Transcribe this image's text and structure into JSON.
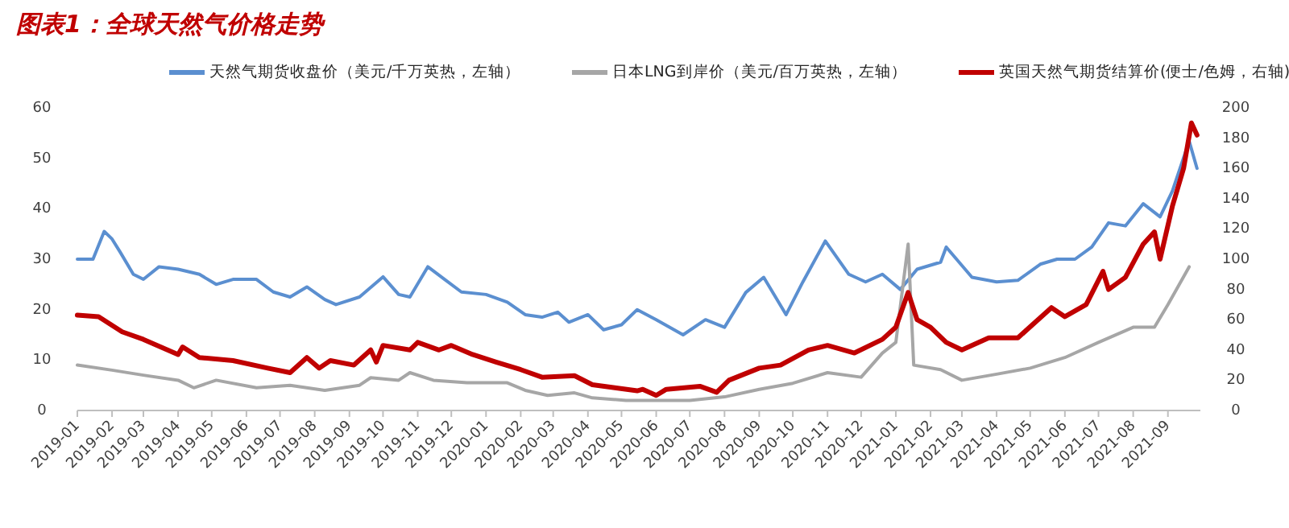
{
  "chart_data": {
    "type": "line",
    "title": "图表1：全球天然气价格走势",
    "legend": "top",
    "grid": false,
    "line_style": "solid",
    "marker": "none",
    "xlim": [
      "2019-01-01",
      "2021-09-30"
    ],
    "xticks": [
      "2019-01",
      "2019-02",
      "2019-03",
      "2019-04",
      "2019-05",
      "2019-06",
      "2019-07",
      "2019-08",
      "2019-09",
      "2019-10",
      "2019-11",
      "2019-12",
      "2020-01",
      "2020-02",
      "2020-03",
      "2020-04",
      "2020-05",
      "2020-06",
      "2020-07",
      "2020-08",
      "2020-09",
      "2020-10",
      "2020-11",
      "2020-12",
      "2021-01",
      "2021-02",
      "2021-03",
      "2021-04",
      "2021-05",
      "2021-06",
      "2021-07",
      "2021-08",
      "2021-09"
    ],
    "ylim": [
      0,
      60
    ],
    "yticks": [
      0,
      10,
      20,
      30,
      40,
      50,
      60
    ],
    "y2lim": [
      0,
      200
    ],
    "y2ticks": [
      0,
      20,
      40,
      60,
      80,
      100,
      120,
      140,
      160,
      180,
      200
    ],
    "series": [
      {
        "name": "天然气期货收盘价（美元/千万英热，左轴）",
        "color": "#5b8fd0",
        "axis": "y",
        "x": [
          "2019-01-01",
          "2019-01-15",
          "2019-01-25",
          "2019-02-01",
          "2019-02-08",
          "2019-02-20",
          "2019-03-01",
          "2019-03-15",
          "2019-04-01",
          "2019-04-20",
          "2019-05-05",
          "2019-05-20",
          "2019-06-10",
          "2019-06-25",
          "2019-07-10",
          "2019-07-25",
          "2019-08-10",
          "2019-08-20",
          "2019-09-10",
          "2019-10-01",
          "2019-10-15",
          "2019-10-25",
          "2019-11-10",
          "2019-11-25",
          "2019-12-10",
          "2020-01-01",
          "2020-01-20",
          "2020-02-05",
          "2020-02-20",
          "2020-03-05",
          "2020-03-15",
          "2020-04-01",
          "2020-04-15",
          "2020-05-01",
          "2020-05-15",
          "2020-06-01",
          "2020-06-25",
          "2020-07-15",
          "2020-08-01",
          "2020-08-20",
          "2020-09-05",
          "2020-09-25",
          "2020-10-10",
          "2020-10-30",
          "2020-11-20",
          "2020-12-05",
          "2020-12-20",
          "2021-01-05",
          "2021-01-20",
          "2021-02-10",
          "2021-02-15",
          "2021-03-10",
          "2021-04-01",
          "2021-04-20",
          "2021-05-10",
          "2021-05-25",
          "2021-06-10",
          "2021-06-25",
          "2021-07-10",
          "2021-07-25",
          "2021-08-10",
          "2021-08-25",
          "2021-09-05",
          "2021-09-20",
          "2021-09-27"
        ],
        "values": [
          30,
          30,
          35.5,
          34,
          31.5,
          27,
          26,
          28.5,
          28,
          27,
          25,
          26,
          26,
          23.5,
          22.5,
          24.5,
          22,
          21,
          22.5,
          26.5,
          23,
          22.5,
          28.5,
          26,
          23.5,
          23,
          21.5,
          19,
          18.5,
          19.5,
          17.5,
          19,
          16,
          17,
          20,
          18,
          15,
          18,
          16.5,
          23.4,
          26.4,
          19,
          25.5,
          33.6,
          27,
          25.5,
          27,
          24,
          28,
          29.4,
          32.4,
          26.4,
          25.5,
          25.8,
          29,
          30,
          30,
          32.4,
          37.2,
          36.6,
          41,
          38.4,
          43.5,
          53.4,
          48
        ]
      },
      {
        "name": "日本LNG到岸价（美元/百万英热，左轴）",
        "color": "#a6a6a6",
        "axis": "y",
        "x": [
          "2019-01-01",
          "2019-02-01",
          "2019-03-01",
          "2019-04-01",
          "2019-04-15",
          "2019-05-05",
          "2019-06-10",
          "2019-07-10",
          "2019-08-10",
          "2019-09-10",
          "2019-09-20",
          "2019-10-15",
          "2019-10-25",
          "2019-11-15",
          "2019-12-15",
          "2020-01-20",
          "2020-02-05",
          "2020-02-25",
          "2020-03-20",
          "2020-04-05",
          "2020-05-05",
          "2020-06-01",
          "2020-07-01",
          "2020-08-01",
          "2020-09-01",
          "2020-10-01",
          "2020-11-01",
          "2020-12-01",
          "2020-12-20",
          "2021-01-01",
          "2021-01-12",
          "2021-01-17",
          "2021-02-10",
          "2021-03-01",
          "2021-04-01",
          "2021-05-01",
          "2021-06-01",
          "2021-07-01",
          "2021-08-01",
          "2021-08-20",
          "2021-09-01",
          "2021-09-20"
        ],
        "values": [
          9,
          8,
          7,
          6,
          4.5,
          6,
          4.5,
          5,
          4,
          5,
          6.5,
          6,
          7.5,
          6,
          5.5,
          5.5,
          4,
          3,
          3.5,
          2.5,
          2,
          2,
          2,
          2.7,
          4.2,
          5.4,
          7.5,
          6.6,
          11.4,
          13.5,
          33,
          9,
          8.1,
          6,
          7.2,
          8.4,
          10.5,
          13.5,
          16.5,
          16.5,
          21,
          28.5
        ]
      },
      {
        "name": "英国天然气期货结算价(便士/色姆，右轴)",
        "color": "#c00000",
        "axis": "y2",
        "x": [
          "2019-01-01",
          "2019-01-20",
          "2019-02-10",
          "2019-03-01",
          "2019-04-01",
          "2019-04-05",
          "2019-04-20",
          "2019-05-20",
          "2019-06-20",
          "2019-07-10",
          "2019-07-25",
          "2019-08-05",
          "2019-08-15",
          "2019-09-05",
          "2019-09-20",
          "2019-09-25",
          "2019-10-01",
          "2019-10-25",
          "2019-11-01",
          "2019-11-20",
          "2019-12-01",
          "2019-12-20",
          "2020-01-10",
          "2020-02-01",
          "2020-02-20",
          "2020-03-20",
          "2020-04-05",
          "2020-04-25",
          "2020-05-15",
          "2020-05-20",
          "2020-06-01",
          "2020-06-10",
          "2020-07-10",
          "2020-07-25",
          "2020-08-05",
          "2020-09-01",
          "2020-09-20",
          "2020-10-15",
          "2020-11-01",
          "2020-11-25",
          "2020-12-20",
          "2021-01-01",
          "2021-01-12",
          "2021-01-20",
          "2021-02-01",
          "2021-02-15",
          "2021-03-01",
          "2021-03-25",
          "2021-04-20",
          "2021-05-20",
          "2021-06-01",
          "2021-06-20",
          "2021-07-05",
          "2021-07-10",
          "2021-07-25",
          "2021-08-10",
          "2021-08-20",
          "2021-08-25",
          "2021-09-05",
          "2021-09-15",
          "2021-09-22",
          "2021-09-27"
        ],
        "values": [
          63,
          62,
          52,
          47,
          37,
          42,
          35,
          33,
          28,
          25,
          35,
          28,
          33,
          30,
          40,
          32,
          43,
          40,
          45,
          40,
          43,
          37,
          32,
          27,
          22,
          23,
          17,
          15,
          13,
          14,
          10,
          14,
          16,
          12,
          20,
          28,
          30,
          40,
          43,
          38,
          47,
          55,
          78,
          60,
          55,
          45,
          40,
          48,
          48,
          68,
          62,
          70,
          92,
          80,
          88,
          110,
          118,
          100,
          135,
          160,
          190,
          182
        ]
      }
    ]
  }
}
